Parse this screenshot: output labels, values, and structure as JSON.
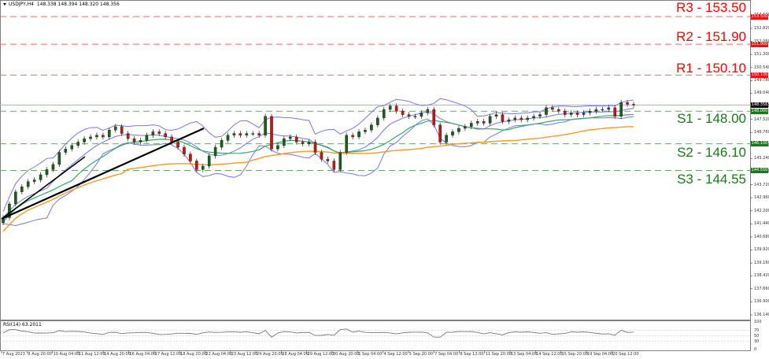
{
  "header": {
    "symbol_timeframe": "USDJPY,H4",
    "ohlc": "148.338 148.394 148.320 148.356"
  },
  "levels": [
    {
      "id": "R3",
      "label": "R3 - 153.50",
      "price": 153.5,
      "tag": "153.500",
      "color": "#ff0000"
    },
    {
      "id": "R2",
      "label": "R2 - 151.90",
      "price": 151.9,
      "tag": "151.900",
      "color": "#ff0000"
    },
    {
      "id": "R1",
      "label": "R1 - 150.10",
      "price": 150.1,
      "tag": "150.100",
      "color": "#ff0000"
    },
    {
      "id": "S1",
      "label": "S1 - 148.00",
      "price": 148.0,
      "tag": "148.000",
      "color": "#1a7a1a"
    },
    {
      "id": "S2",
      "label": "S2 - 146.10",
      "price": 146.1,
      "tag": "146.100",
      "color": "#1a7a1a"
    },
    {
      "id": "S3",
      "label": "S3 - 144.55",
      "price": 144.55,
      "tag": "144.550",
      "color": "#1a7a1a"
    }
  ],
  "current_price": {
    "value": 148.356,
    "tag": "148.356"
  },
  "price_axis": [
    "153.600",
    "152.820",
    "152.060",
    "151.300",
    "150.540",
    "149.780",
    "149.040",
    "148.280",
    "147.520",
    "146.760",
    "146.000",
    "145.240",
    "144.480",
    "143.720",
    "142.960",
    "142.200",
    "141.440",
    "140.680",
    "139.920",
    "139.160",
    "138.420",
    "137.660",
    "136.900",
    "136.140"
  ],
  "rsi": {
    "label": "RSI(14) 63.2011",
    "axis": [
      "100",
      "70",
      "50",
      "30",
      "0"
    ]
  },
  "time_axis": [
    "7 Aug 2023",
    "8 Aug 20:00",
    "10 Aug 04:00",
    "11 Aug 12:00",
    "14 Aug 20:00",
    "16 Aug 04:00",
    "17 Aug 12:00",
    "18 Aug 20:00",
    "22 Aug 04:00",
    "23 Aug 12:00",
    "24 Aug 20:00",
    "28 Aug 04:00",
    "29 Aug 12:00",
    "30 Aug 20:00",
    "1 Sep 04:00",
    "4 Sep 12:00",
    "5 Sep 20:00",
    "7 Sep 04:00",
    "8 Sep 12:00",
    "11 Sep 20:00",
    "13 Sep 04:00",
    "14 Sep 12:00",
    "15 Sep 20:00",
    "19 Sep 04:00",
    "20 Sep 12:00"
  ],
  "colors": {
    "bull": "#1a5e1a",
    "bear": "#cc1111",
    "bollinger": "#7777ee",
    "ma_green": "#33aa66",
    "ma_orange": "#ff9922",
    "trendline": "#000000",
    "current_line": "#aab0c0"
  },
  "chart_data": {
    "type": "candlestick",
    "title": "USDJPY,H4",
    "symbol": "USDJPY",
    "timeframe": "H4",
    "last_ohlc": {
      "open": 148.338,
      "high": 148.394,
      "low": 148.32,
      "close": 148.356
    },
    "ylim": [
      136.14,
      153.6
    ],
    "x_labels": [
      "7 Aug 2023",
      "8 Aug 20:00",
      "10 Aug 04:00",
      "11 Aug 12:00",
      "14 Aug 20:00",
      "16 Aug 04:00",
      "17 Aug 12:00",
      "18 Aug 20:00",
      "22 Aug 04:00",
      "23 Aug 12:00",
      "24 Aug 20:00",
      "28 Aug 04:00",
      "29 Aug 12:00",
      "30 Aug 20:00",
      "1 Sep 04:00",
      "4 Sep 12:00",
      "5 Sep 20:00",
      "7 Sep 04:00",
      "8 Sep 12:00",
      "11 Sep 20:00",
      "13 Sep 04:00",
      "14 Sep 12:00",
      "15 Sep 20:00",
      "19 Sep 04:00",
      "20 Sep 12:00"
    ],
    "closes_approx": [
      141.8,
      142.6,
      143.3,
      143.6,
      143.9,
      144.0,
      144.3,
      144.6,
      144.9,
      145.6,
      145.8,
      146.0,
      146.2,
      146.4,
      146.5,
      146.6,
      146.5,
      146.9,
      147.1,
      146.7,
      146.4,
      146.2,
      146.3,
      146.6,
      146.8,
      146.7,
      146.5,
      146.2,
      145.9,
      145.5,
      145.1,
      144.6,
      144.8,
      145.4,
      145.9,
      146.3,
      146.6,
      146.7,
      146.6,
      146.7,
      146.7,
      146.6,
      147.7,
      145.8,
      146.0,
      146.4,
      146.5,
      146.2,
      146.1,
      146.2,
      145.6,
      145.2,
      145.1,
      144.6,
      145.6,
      146.6,
      146.5,
      146.8,
      146.9,
      147.2,
      147.6,
      148.1,
      148.3,
      148.0,
      147.8,
      147.7,
      147.7,
      147.9,
      148.1,
      147.2,
      146.2,
      146.6,
      146.8,
      147.0,
      147.1,
      147.3,
      147.4,
      147.3,
      147.7,
      147.8,
      147.4,
      147.5,
      147.6,
      147.5,
      147.6,
      147.7,
      147.8,
      148.2,
      148.1,
      148.0,
      147.8,
      147.9,
      147.8,
      147.9,
      148.0,
      148.1,
      148.1,
      148.2,
      147.7,
      148.5,
      148.4,
      148.356
    ],
    "support_resistance": [
      {
        "name": "R3",
        "value": 153.5
      },
      {
        "name": "R2",
        "value": 151.9
      },
      {
        "name": "R1",
        "value": 150.1
      },
      {
        "name": "S1",
        "value": 148.0
      },
      {
        "name": "S2",
        "value": 146.1
      },
      {
        "name": "S3",
        "value": 144.55
      }
    ],
    "indicators": [
      {
        "name": "Bollinger Bands",
        "color": "#7777ee"
      },
      {
        "name": "Moving Average (fast)",
        "color": "#33aa66"
      },
      {
        "name": "Moving Average (slow)",
        "color": "#ff9922"
      },
      {
        "name": "RSI(14)",
        "value": 63.2011,
        "levels": [
          70,
          50,
          30
        ],
        "ylim": [
          0,
          100
        ]
      }
    ],
    "trendlines": [
      {
        "from": {
          "x_label": "7 Aug 2023",
          "price": 141.8
        },
        "to": {
          "x_label": "18 Aug 20:00",
          "price": 147.1
        }
      },
      {
        "from": {
          "x_label": "7 Aug 2023",
          "price": 141.8
        },
        "to": {
          "x_label": "11 Aug 12:00",
          "price": 146.0
        }
      }
    ]
  }
}
